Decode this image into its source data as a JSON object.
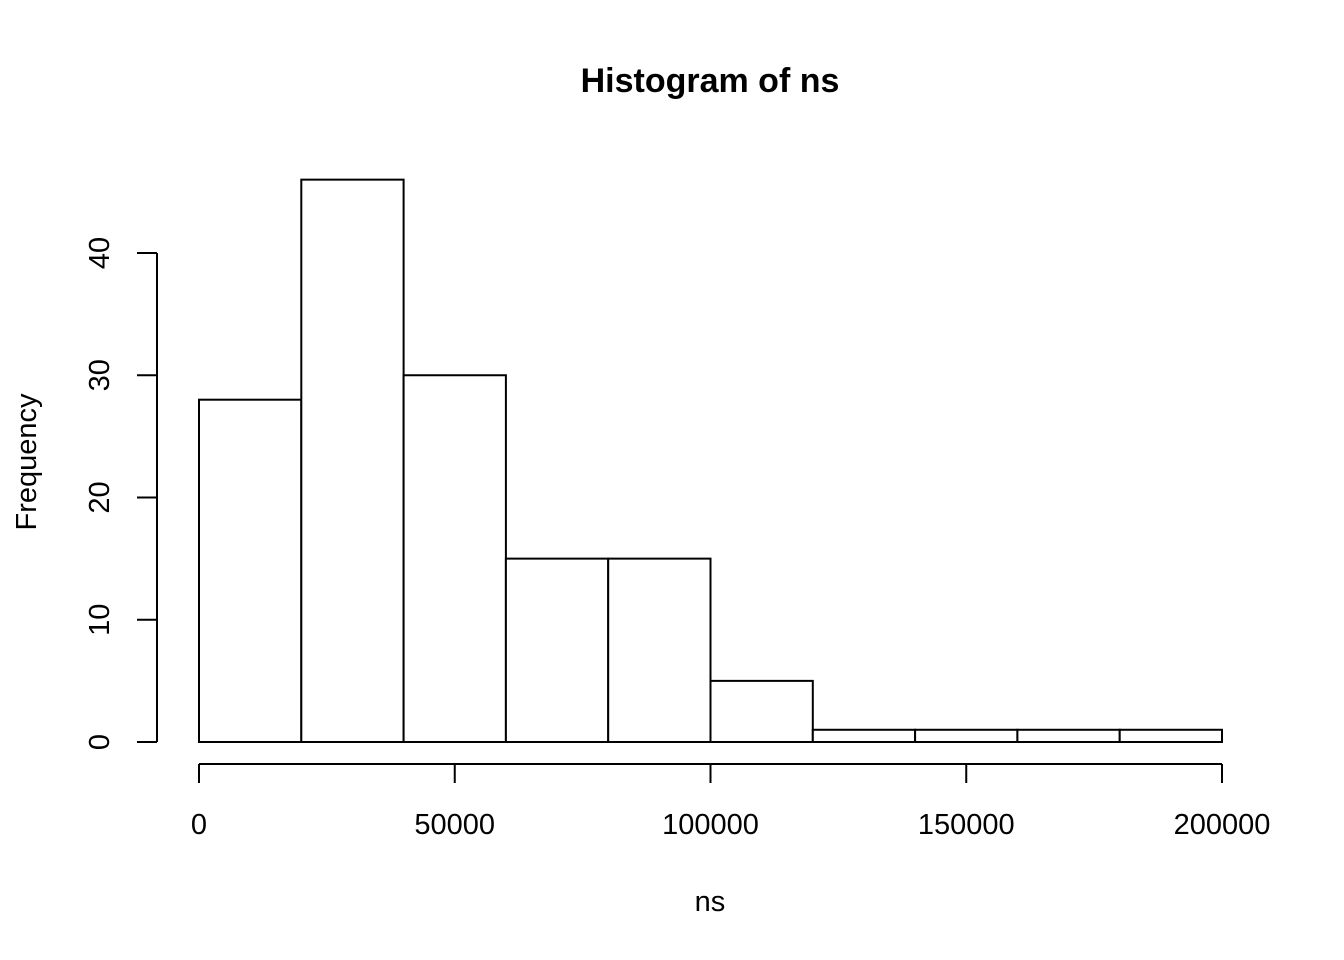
{
  "chart_data": {
    "type": "bar",
    "title": "Histogram of ns",
    "xlabel": "ns",
    "ylabel": "Frequency",
    "bins": [
      {
        "start": 0,
        "end": 20000,
        "count": 28
      },
      {
        "start": 20000,
        "end": 40000,
        "count": 46
      },
      {
        "start": 40000,
        "end": 60000,
        "count": 30
      },
      {
        "start": 60000,
        "end": 80000,
        "count": 15
      },
      {
        "start": 80000,
        "end": 100000,
        "count": 15
      },
      {
        "start": 100000,
        "end": 120000,
        "count": 5
      },
      {
        "start": 120000,
        "end": 140000,
        "count": 1
      },
      {
        "start": 140000,
        "end": 160000,
        "count": 1
      },
      {
        "start": 160000,
        "end": 180000,
        "count": 1
      },
      {
        "start": 180000,
        "end": 200000,
        "count": 1
      }
    ],
    "xlim": [
      0,
      200000
    ],
    "ylim": [
      0,
      46
    ],
    "x_ticks": [
      0,
      50000,
      100000,
      150000,
      200000
    ],
    "x_tick_labels": [
      "0",
      "50000",
      "100000",
      "150000",
      "200000"
    ],
    "y_ticks": [
      0,
      10,
      20,
      30,
      40
    ],
    "y_tick_labels": [
      "0",
      "10",
      "20",
      "30",
      "40"
    ],
    "grid": false,
    "colors": {
      "bar_fill": "#ffffff",
      "bar_stroke": "#000000"
    }
  }
}
